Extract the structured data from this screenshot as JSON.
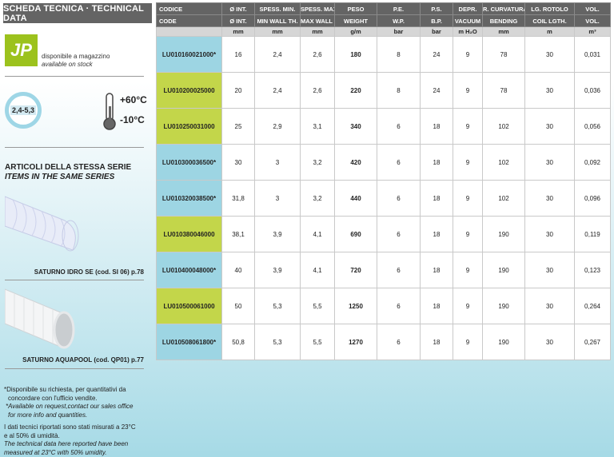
{
  "header": {
    "title": "SCHEDA TECNICA · TECHNICAL DATA"
  },
  "stock": {
    "logo": "JP",
    "it": "disponibile a magazzino",
    "en": "available on stock"
  },
  "specs": {
    "thickness": "2,4-5,3",
    "temp_max": "+60°C",
    "temp_min": "-10°C"
  },
  "series": {
    "title_it": "ARTICOLI DELLA STESSA SERIE",
    "title_en": "ITEMS IN THE SAME SERIES",
    "items": [
      {
        "caption": "SATURNO IDRO SE (cod. SI 06) p.78"
      },
      {
        "caption": "SATURNO AQUAPOOL (cod. QP01) p.77"
      }
    ]
  },
  "notes": {
    "avail_it_1": "*Disponibile su richiesta, per quantitativi da",
    "avail_it_2": "concordare con l'ufficio vendite.",
    "avail_en_1": "*Available on request,contact our sales office",
    "avail_en_2": "for more info and quantities.",
    "meas_it_1": "I dati tecnici riportati sono stati misurati a 23°C",
    "meas_it_2": "e al 50% di umidità.",
    "meas_en_1": "The technical data here reported have been",
    "meas_en_2": "measured at 23°C with 50% umidity."
  },
  "colors": {
    "available": "#c3d64a",
    "on_request": "#9dd5e3",
    "header": "#646464"
  },
  "table": {
    "header_it": [
      "CODICE",
      "Ø INT.",
      "SPESS. MIN.",
      "SPESS. MAX.",
      "PESO",
      "P.E.",
      "P.S.",
      "DEPR.",
      "R. CURVATURA",
      "LG. ROTOLO",
      "VOL."
    ],
    "header_en": [
      "CODE",
      "Ø INT.",
      "MIN WALL TH.",
      "MAX WALL TH.",
      "WEIGHT",
      "W.P.",
      "B.P.",
      "VACUUM",
      "BENDING",
      "COIL LGTH.",
      "VOL."
    ],
    "units": [
      "",
      "mm",
      "mm",
      "mm",
      "g/m",
      "bar",
      "bar",
      "m H₂O",
      "mm",
      "m",
      "m³"
    ],
    "rows": [
      [
        "LU010160021000*",
        "16",
        "2,4",
        "2,6",
        "180",
        "8",
        "24",
        "9",
        "78",
        "30",
        "0,031"
      ],
      [
        "LU010200025000",
        "20",
        "2,4",
        "2,6",
        "220",
        "8",
        "24",
        "9",
        "78",
        "30",
        "0,036"
      ],
      [
        "LU010250031000",
        "25",
        "2,9",
        "3,1",
        "340",
        "6",
        "18",
        "9",
        "102",
        "30",
        "0,056"
      ],
      [
        "LU010300036500*",
        "30",
        "3",
        "3,2",
        "420",
        "6",
        "18",
        "9",
        "102",
        "30",
        "0,092"
      ],
      [
        "LU010320038500*",
        "31,8",
        "3",
        "3,2",
        "440",
        "6",
        "18",
        "9",
        "102",
        "30",
        "0,096"
      ],
      [
        "LU010380046000",
        "38,1",
        "3,9",
        "4,1",
        "690",
        "6",
        "18",
        "9",
        "190",
        "30",
        "0,119"
      ],
      [
        "LU010400048000*",
        "40",
        "3,9",
        "4,1",
        "720",
        "6",
        "18",
        "9",
        "190",
        "30",
        "0,123"
      ],
      [
        "LU010500061000",
        "50",
        "5,3",
        "5,5",
        "1250",
        "6",
        "18",
        "9",
        "190",
        "30",
        "0,264"
      ],
      [
        "LU010508061800*",
        "50,8",
        "5,3",
        "5,5",
        "1270",
        "6",
        "18",
        "9",
        "190",
        "30",
        "0,267"
      ]
    ]
  }
}
